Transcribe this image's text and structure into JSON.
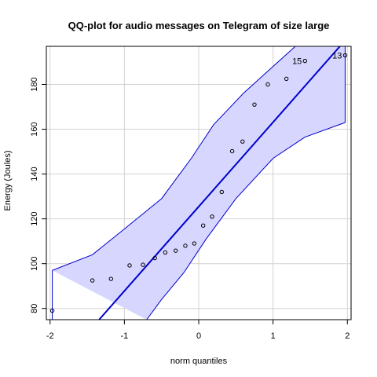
{
  "chart_data": {
    "type": "scatter",
    "title": "QQ-plot for audio messages on Telegram of size large",
    "xlabel": "norm quantiles",
    "ylabel": "Energy (Joules)",
    "xlim": [
      -2.05,
      2.05
    ],
    "ylim": [
      75,
      197
    ],
    "xticks": [
      -2,
      -1,
      0,
      1,
      2
    ],
    "yticks": [
      80,
      100,
      120,
      140,
      160,
      180
    ],
    "grid": true,
    "colors": {
      "band_fill": "#d6d6ff",
      "band_edge": "#0000cd",
      "line": "#0000cd",
      "grid": "#d3d3d3",
      "points": "#000000",
      "axis": "#000000"
    },
    "points": [
      {
        "x": -1.97,
        "y": 79
      },
      {
        "x": -1.43,
        "y": 92.5
      },
      {
        "x": -1.18,
        "y": 93.2
      },
      {
        "x": -0.93,
        "y": 99.2
      },
      {
        "x": -0.75,
        "y": 99.5
      },
      {
        "x": -0.59,
        "y": 102.5
      },
      {
        "x": -0.45,
        "y": 105
      },
      {
        "x": -0.31,
        "y": 105.8
      },
      {
        "x": -0.18,
        "y": 108
      },
      {
        "x": -0.06,
        "y": 109
      },
      {
        "x": 0.06,
        "y": 117
      },
      {
        "x": 0.18,
        "y": 121
      },
      {
        "x": 0.31,
        "y": 132
      },
      {
        "x": 0.45,
        "y": 150.2
      },
      {
        "x": 0.59,
        "y": 154.5
      },
      {
        "x": 0.75,
        "y": 171
      },
      {
        "x": 0.93,
        "y": 180
      },
      {
        "x": 1.18,
        "y": 182.5
      },
      {
        "x": 1.43,
        "y": 190.5
      },
      {
        "x": 1.97,
        "y": 193
      }
    ],
    "labeled_points": [
      {
        "label": "15",
        "x": 1.43,
        "y": 190.5
      },
      {
        "label": "13",
        "x": 1.97,
        "y": 193
      }
    ],
    "reference_line": {
      "x1": -1.34,
      "y1": 75,
      "x2": 1.9,
      "y2": 197
    },
    "band_upper": [
      {
        "x": -1.97,
        "y": 97
      },
      {
        "x": -1.43,
        "y": 104
      },
      {
        "x": -1.0,
        "y": 115.5
      },
      {
        "x": -0.5,
        "y": 129
      },
      {
        "x": -0.1,
        "y": 147
      },
      {
        "x": 0.2,
        "y": 162
      },
      {
        "x": 0.6,
        "y": 176
      },
      {
        "x": 1.0,
        "y": 188
      },
      {
        "x": 1.3,
        "y": 197
      }
    ],
    "band_lower": [
      {
        "x": 1.97,
        "y": 163
      },
      {
        "x": 1.43,
        "y": 156.5
      },
      {
        "x": 1.0,
        "y": 147
      },
      {
        "x": 0.5,
        "y": 129
      },
      {
        "x": 0.1,
        "y": 111
      },
      {
        "x": -0.2,
        "y": 96
      },
      {
        "x": -0.5,
        "y": 84
      },
      {
        "x": -0.7,
        "y": 75
      }
    ],
    "band_top_right": {
      "x": 1.97,
      "y": 197
    }
  }
}
